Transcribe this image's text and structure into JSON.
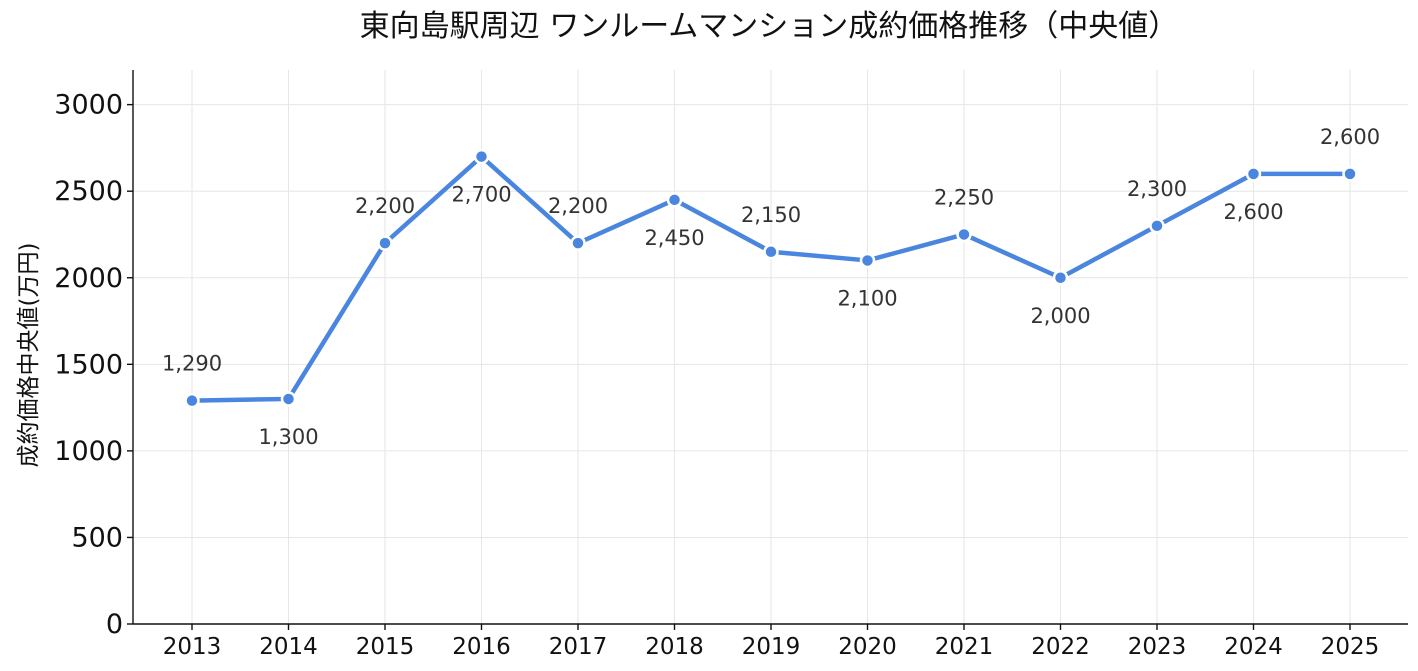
{
  "chart_data": {
    "type": "line",
    "title": "東向島駅周辺 ワンルームマンション成約価格推移（中央値）",
    "ylabel": "成約価格中央値(万円)",
    "xlabel": "",
    "categories": [
      "2013",
      "2014",
      "2015",
      "2016",
      "2017",
      "2018",
      "2019",
      "2020",
      "2021",
      "2022",
      "2023",
      "2024",
      "2025"
    ],
    "values": [
      1290,
      1300,
      2200,
      2700,
      2200,
      2450,
      2150,
      2100,
      2250,
      2000,
      2300,
      2600,
      2600
    ],
    "data_labels": [
      "1,290",
      "1,300",
      "2,200",
      "2,700",
      "2,200",
      "2,450",
      "2,150",
      "2,100",
      "2,250",
      "2,000",
      "2,300",
      "2,600",
      "2,600"
    ],
    "label_position": [
      "above",
      "below",
      "above",
      "below",
      "above",
      "below",
      "above",
      "below",
      "above",
      "below",
      "above",
      "below",
      "above"
    ],
    "yticks": [
      0,
      500,
      1000,
      1500,
      2000,
      2500,
      3000
    ],
    "ylim": [
      0,
      3200
    ],
    "grid": true,
    "line_color": "#4a86e0"
  }
}
